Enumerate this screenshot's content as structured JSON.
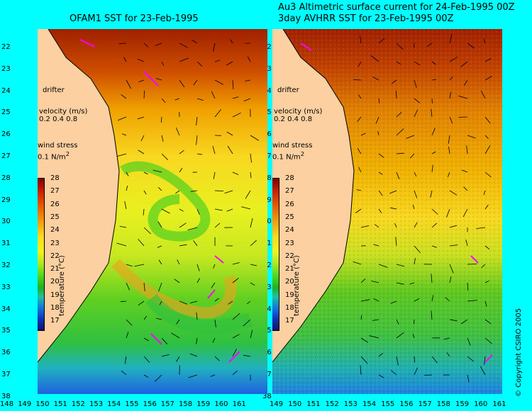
{
  "titles": {
    "left": "OFAM1 SST for 23-Feb-1995",
    "right_line1": "Au3 Altimetric surface current for 24-Feb-1995 00Z",
    "right_line2": "3day AVHRR SST for 23-Feb-1995 00Z"
  },
  "legend": {
    "drifter": "drifter",
    "velocity_title": "velocity (m/s)",
    "velocity_scale": "0.2 0.4 0.8",
    "wind_title": "wind stress",
    "wind_value": "0.1 N/m",
    "wind_unit_sup": "2",
    "temp_label": "temperature (°C)",
    "temp_ticks": [
      "28",
      "27",
      "26",
      "25",
      "24",
      "23",
      "22",
      "21",
      "20",
      "19",
      "18",
      "17"
    ]
  },
  "axes": {
    "lat_ticks": [
      "22",
      "23",
      "24",
      "25",
      "26",
      "27",
      "28",
      "29",
      "30",
      "31",
      "32",
      "33",
      "34",
      "35",
      "36",
      "37",
      "38"
    ],
    "lon_ticks_left": [
      "148",
      "149",
      "150",
      "151",
      "152",
      "153",
      "154",
      "155",
      "156",
      "157",
      "158",
      "159",
      "160",
      "161"
    ],
    "lon_ticks_right": [
      "149",
      "150",
      "151",
      "152",
      "153",
      "154",
      "155",
      "156",
      "157",
      "158",
      "159",
      "160",
      "161"
    ]
  },
  "copyright": "© Copyright CSIRO 2005",
  "colors": {
    "background": "#00ffff",
    "land": "#fcd0a0",
    "drifter_arrows": "#ff00ff"
  }
}
